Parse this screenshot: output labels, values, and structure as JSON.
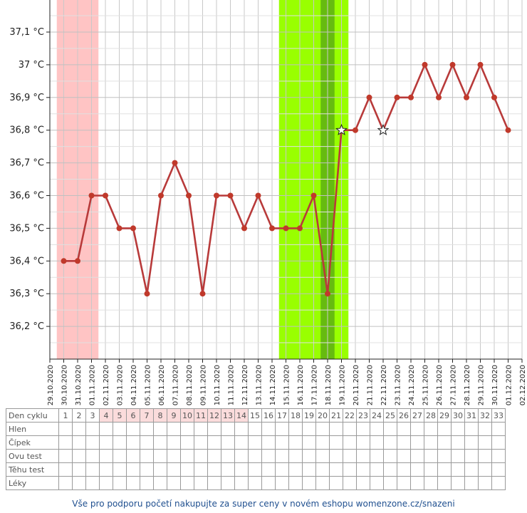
{
  "chart_data": {
    "type": "line",
    "title": "",
    "xlabel": "",
    "ylabel": "",
    "ylim": [
      36.1,
      37.2
    ],
    "y_ticks": [
      "36,2 °C",
      "36,3 °C",
      "36,4 °C",
      "36,5 °C",
      "36,6 °C",
      "36,7 °C",
      "36,8 °C",
      "36,9 °C",
      "37 °C",
      "37,1 °C"
    ],
    "x_ticks": [
      "29.10.2020",
      "30.10.2020",
      "31.10.2020",
      "01.11.2020",
      "02.11.2020",
      "03.11.2020",
      "04.11.2020",
      "05.11.2020",
      "06.11.2020",
      "07.11.2020",
      "08.11.2020",
      "09.11.2020",
      "10.11.2020",
      "11.11.2020",
      "12.11.2020",
      "13.11.2020",
      "14.11.2020",
      "15.11.2020",
      "16.11.2020",
      "17.11.2020",
      "18.11.2020",
      "19.11.2020",
      "20.11.2020",
      "21.11.2020",
      "22.11.2020",
      "23.11.2020",
      "24.11.2020",
      "25.11.2020",
      "26.11.2020",
      "27.11.2020",
      "28.11.2020",
      "29.11.2020",
      "30.11.2020",
      "01.12.2020",
      "02.12.2020"
    ],
    "series": [
      {
        "x": [
          "30.10.2020",
          "31.10.2020",
          "01.11.2020",
          "02.11.2020",
          "03.11.2020",
          "04.11.2020",
          "05.11.2020",
          "06.11.2020",
          "07.11.2020",
          "08.11.2020",
          "09.11.2020",
          "10.11.2020",
          "11.11.2020",
          "12.11.2020",
          "13.11.2020",
          "14.11.2020",
          "15.11.2020",
          "16.11.2020",
          "17.11.2020",
          "18.11.2020",
          "19.11.2020",
          "20.11.2020",
          "21.11.2020",
          "22.11.2020",
          "23.11.2020",
          "24.11.2020",
          "25.11.2020",
          "26.11.2020",
          "27.11.2020",
          "28.11.2020",
          "29.11.2020",
          "30.11.2020",
          "01.12.2020"
        ],
        "values": [
          36.4,
          36.4,
          36.6,
          36.6,
          36.5,
          36.5,
          36.3,
          36.6,
          36.7,
          36.6,
          36.3,
          36.6,
          36.6,
          36.5,
          36.6,
          36.5,
          36.5,
          36.5,
          36.6,
          36.3,
          36.8,
          36.8,
          36.9,
          36.8,
          36.9,
          36.9,
          37.0,
          36.9,
          37.0,
          36.9,
          37.0,
          36.9,
          36.8
        ],
        "color": "#c0392b"
      }
    ],
    "star_markers": [
      "19.11.2020",
      "22.11.2020"
    ],
    "shaded_ranges": [
      {
        "start": "30.10.2020",
        "end": "01.11.2020",
        "color": "#ffc4c4"
      },
      {
        "start": "15.11.2020",
        "end": "19.11.2020",
        "color": "#99ff00"
      },
      {
        "start": "18.11.2020",
        "end": "18.11.2020",
        "color": "#66bb10"
      }
    ],
    "grid": true
  },
  "table": {
    "rows": [
      "Den cyklu",
      "Hlen",
      "Čípek",
      "Ovu test",
      "Těhu test",
      "Léky"
    ],
    "days": [
      "1",
      "2",
      "3",
      "4",
      "5",
      "6",
      "7",
      "8",
      "9",
      "10",
      "11",
      "12",
      "13",
      "14",
      "15",
      "16",
      "17",
      "18",
      "19",
      "20",
      "21",
      "22",
      "23",
      "24",
      "25",
      "26",
      "27",
      "28",
      "29",
      "30",
      "31",
      "32",
      "33"
    ],
    "highlighted_days": [
      "4",
      "5",
      "6",
      "7",
      "8",
      "9",
      "10",
      "11",
      "12",
      "13",
      "14"
    ],
    "highlight_color": "#fbdcdc"
  },
  "footer": {
    "text": "Vše pro podporu početí nakupujte za super ceny v novém eshopu womenzone.cz/snazeni"
  }
}
